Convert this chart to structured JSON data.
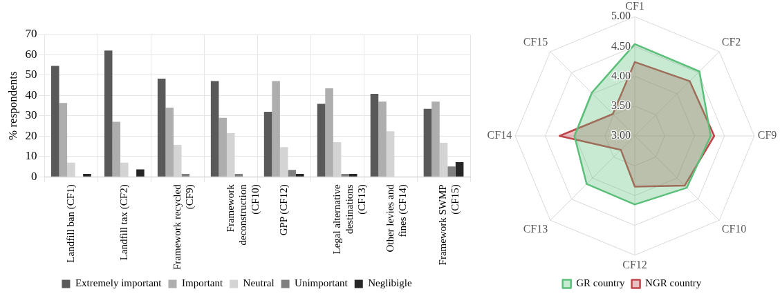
{
  "chart_data": [
    {
      "type": "bar",
      "ylabel": "% respondents",
      "categories": [
        "Landfill ban (CF1)",
        "Landfill tax (CF2)",
        "Framework recycled (CF9)",
        "Framework deconstruction (CF10)",
        "GPP (CF12)",
        "Legal alternative destinations (CF13)",
        "Other levies and fines (CF14)",
        "Framework SWMP (CF15)"
      ],
      "series": [
        {
          "name": "Extremely important",
          "color": "#595959",
          "values": [
            54.6,
            62.1,
            48.3,
            47.1,
            32,
            35.9,
            40.8,
            33.4
          ]
        },
        {
          "name": "Important",
          "color": "#aeaeae",
          "values": [
            36.3,
            27.1,
            34,
            29,
            47.1,
            43.5,
            37,
            37
          ]
        },
        {
          "name": "Neutral",
          "color": "#d4d4d4",
          "values": [
            7,
            7,
            15.7,
            21.5,
            14.6,
            17.1,
            22.4,
            16.7
          ]
        },
        {
          "name": "Unimportant",
          "color": "#808080",
          "values": [
            0,
            0,
            1.5,
            1.5,
            3.4,
            1.5,
            0,
            5.1
          ]
        },
        {
          "name": "Neglibigle",
          "color": "#262626",
          "values": [
            1.5,
            3.7,
            0,
            0,
            1.5,
            1.5,
            0,
            7.2
          ]
        }
      ],
      "ylim": [
        0,
        70
      ],
      "yticks": [
        0,
        10,
        20,
        30,
        40,
        50,
        60,
        70
      ],
      "grid": true,
      "legend": "bottom"
    },
    {
      "type": "radar",
      "categories": [
        "CF1",
        "CF2",
        "CF9",
        "CF10",
        "CF12",
        "CF13",
        "CF14",
        "CF15"
      ],
      "series": [
        {
          "name": "GR country",
          "color": "#5bbf7a",
          "values": [
            4.54,
            4.53,
            4.27,
            4.23,
            4.15,
            4.14,
            4.01,
            4.02
          ]
        },
        {
          "name": "NGR country",
          "color": "#c0454a",
          "values": [
            4.24,
            4.3,
            4.33,
            4.18,
            3.85,
            3.33,
            4.26,
            3.52
          ]
        }
      ],
      "ylim": [
        3,
        5
      ],
      "yticks": [
        {
          "value": 3,
          "label": "3.00"
        },
        {
          "value": 3.5,
          "label": "3.50"
        },
        {
          "value": 4,
          "label": "4.00"
        },
        {
          "value": 4.5,
          "label": "4.50"
        },
        {
          "value": 5,
          "label": "5.00"
        }
      ],
      "grid": true,
      "legend": "bottom"
    }
  ]
}
